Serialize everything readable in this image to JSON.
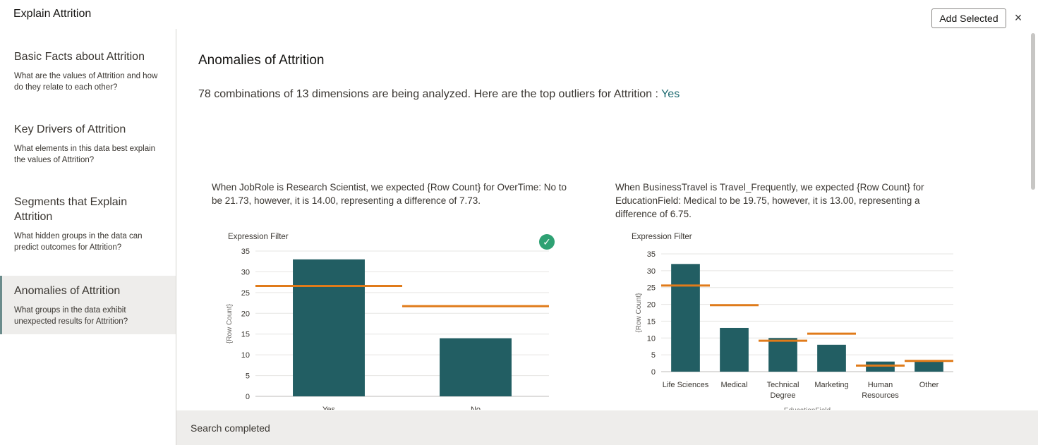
{
  "header": {
    "title": "Explain Attrition",
    "add_selected_label": "Add Selected",
    "close_label": "×"
  },
  "sidebar": {
    "items": [
      {
        "title": "Basic Facts about Attrition",
        "desc": "What are the values of Attrition and how do they relate to each other?"
      },
      {
        "title": "Key Drivers of Attrition",
        "desc": "What elements in this data best explain the values of Attrition?"
      },
      {
        "title": "Segments that Explain Attrition",
        "desc": "What hidden groups in the data can predict outcomes for Attrition?"
      },
      {
        "title": "Anomalies of Attrition",
        "desc": "What groups in the data exhibit unexpected results for Attrition?"
      }
    ]
  },
  "main": {
    "title": "Anomalies of Attrition",
    "summary_prefix": "78 combinations of 13 dimensions are being analyzed. Here are the top outliers for Attrition : ",
    "summary_link": "Yes"
  },
  "status": {
    "text": "Search completed"
  },
  "colors": {
    "bar": "#225e63",
    "expected": "#e07b1a",
    "check": "#2ea173",
    "link": "#1d6a70"
  },
  "chart_data": [
    {
      "type": "bar",
      "description": "When JobRole is Research Scientist, we expected {Row Count} for OverTime: No to be 21.73, however, it is 14.00, representing a difference of 7.73.",
      "title": "Expression Filter",
      "ylabel": "{Row Count}",
      "xlabel": "",
      "ylim": [
        0,
        35
      ],
      "yticks": [
        0,
        5,
        10,
        15,
        20,
        25,
        30,
        35
      ],
      "categories": [
        "Yes",
        "No"
      ],
      "series": [
        {
          "name": "Actual",
          "values": [
            33,
            14
          ]
        },
        {
          "name": "Expected",
          "values": [
            26.6,
            21.73
          ]
        }
      ],
      "selected": true
    },
    {
      "type": "bar",
      "description": "When BusinessTravel is Travel_Frequently, we expected {Row Count} for EducationField: Medical to be 19.75, however, it is 13.00, representing a difference of 6.75.",
      "title": "Expression Filter",
      "ylabel": "{Row Count}",
      "xlabel": "EducationField",
      "ylim": [
        0,
        35
      ],
      "yticks": [
        0,
        5,
        10,
        15,
        20,
        25,
        30,
        35
      ],
      "categories": [
        "Life Sciences",
        "Medical",
        "Technical Degree",
        "Marketing",
        "Human Resources",
        "Other"
      ],
      "series": [
        {
          "name": "Actual",
          "values": [
            32,
            13,
            10,
            8,
            3,
            3
          ]
        },
        {
          "name": "Expected",
          "values": [
            25.6,
            19.75,
            9.2,
            11.3,
            1.8,
            3.2
          ]
        }
      ],
      "selected": false
    }
  ]
}
